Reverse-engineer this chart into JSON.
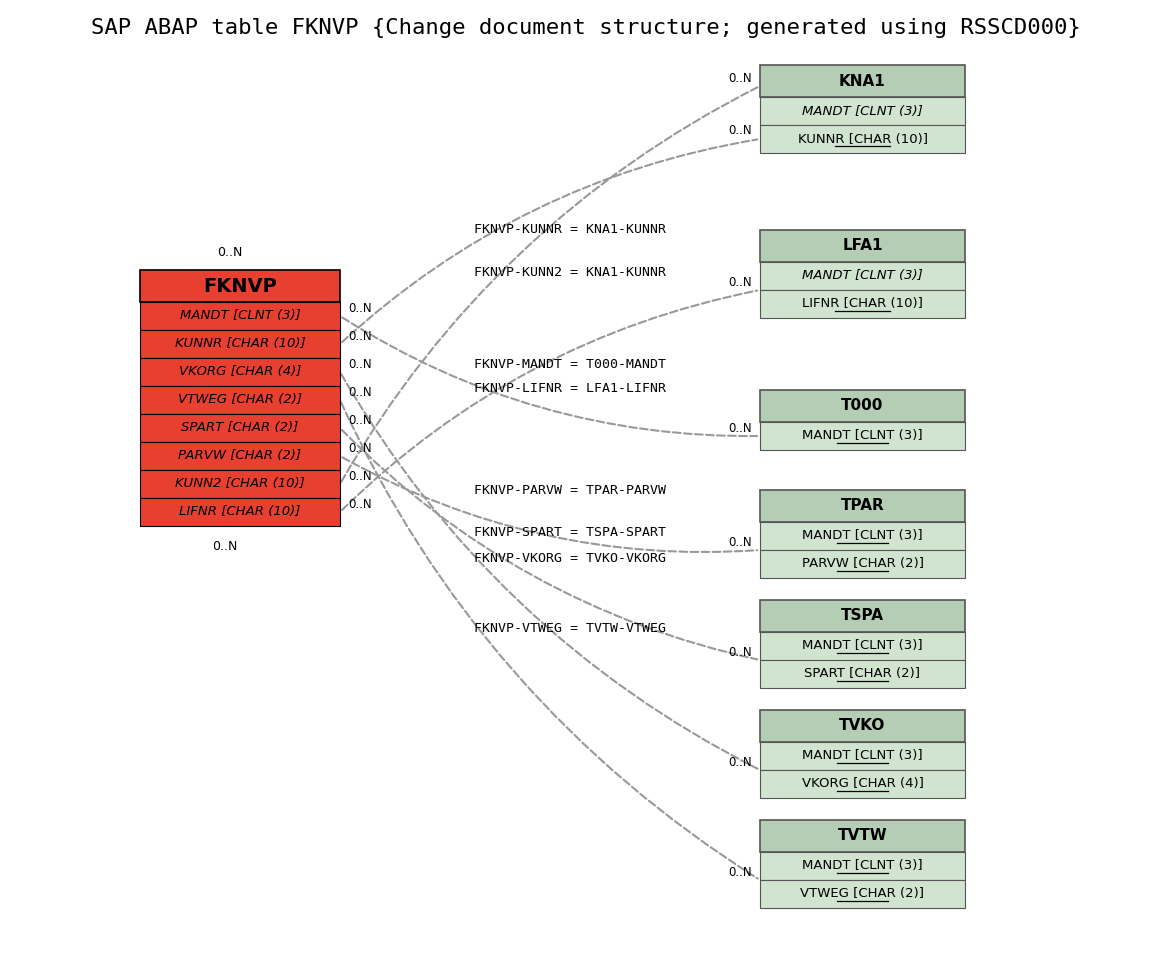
{
  "title": "SAP ABAP table FKNVP {Change document structure; generated using RSSCD000}",
  "fig_width": 11.72,
  "fig_height": 9.65,
  "background_color": "#ffffff",
  "main_table": {
    "name": "FKNVP",
    "fields": [
      "MANDT [CLNT (3)]",
      "KUNNR [CHAR (10)]",
      "VKORG [CHAR (4)]",
      "VTWEG [CHAR (2)]",
      "SPART [CHAR (2)]",
      "PARVW [CHAR (2)]",
      "KUNN2 [CHAR (10)]",
      "LIFNR [CHAR (10)]"
    ],
    "italic_fields": [
      true,
      true,
      true,
      true,
      true,
      true,
      true,
      true
    ],
    "header_bg": "#e84030",
    "field_bg": "#e84030",
    "border_color": "#000000",
    "text_color": "#000000"
  },
  "related_tables": [
    {
      "name": "KNA1",
      "fields": [
        "MANDT [CLNT (3)]",
        "KUNNR [CHAR (10)]"
      ],
      "italic_fields": [
        true,
        false
      ],
      "underline_fields": [
        false,
        true
      ],
      "from_field_idx": 6,
      "relation_label": "FKNVP-KUNN2 = KNA1-KUNNR"
    },
    {
      "name": "KNA1_2",
      "display_name": "",
      "fields": [],
      "italic_fields": [],
      "underline_fields": [],
      "from_field_idx": 1,
      "relation_label": "FKNVP-KUNNR = KNA1-KUNNR",
      "connects_to": "KNA1"
    },
    {
      "name": "LFA1",
      "fields": [
        "MANDT [CLNT (3)]",
        "LIFNR [CHAR (10)]"
      ],
      "italic_fields": [
        true,
        false
      ],
      "underline_fields": [
        false,
        true
      ],
      "from_field_idx": 7,
      "relation_label": "FKNVP-LIFNR = LFA1-LIFNR"
    },
    {
      "name": "T000",
      "fields": [
        "MANDT [CLNT (3)]"
      ],
      "italic_fields": [
        false
      ],
      "underline_fields": [
        true
      ],
      "from_field_idx": 0,
      "relation_label": "FKNVP-MANDT = T000-MANDT"
    },
    {
      "name": "TPAR",
      "fields": [
        "MANDT [CLNT (3)]",
        "PARVW [CHAR (2)]"
      ],
      "italic_fields": [
        false,
        false
      ],
      "underline_fields": [
        true,
        true
      ],
      "from_field_idx": 5,
      "relation_label": "FKNVP-PARVW = TPAR-PARVW"
    },
    {
      "name": "TSPA",
      "fields": [
        "MANDT [CLNT (3)]",
        "SPART [CHAR (2)]"
      ],
      "italic_fields": [
        false,
        false
      ],
      "underline_fields": [
        true,
        true
      ],
      "from_field_idx": 4,
      "relation_label": "FKNVP-SPART = TSPA-SPART"
    },
    {
      "name": "TVKO",
      "fields": [
        "MANDT [CLNT (3)]",
        "VKORG [CHAR (4)]"
      ],
      "italic_fields": [
        false,
        false
      ],
      "underline_fields": [
        true,
        true
      ],
      "from_field_idx": 2,
      "relation_label": "FKNVP-VKORG = TVKO-VKORG"
    },
    {
      "name": "TVTW",
      "fields": [
        "MANDT [CLNT (3)]",
        "VTWEG [CHAR (2)]"
      ],
      "italic_fields": [
        false,
        false
      ],
      "underline_fields": [
        true,
        true
      ],
      "from_field_idx": 3,
      "relation_label": "FKNVP-VTWEG = TVTW-VTWEG"
    }
  ],
  "right_header_bg": "#b5cdb5",
  "right_field_bg": "#d0e4d0",
  "right_border_color": "#555555",
  "dashed_line_color": "#999999",
  "label_fontsize": 9.5,
  "field_fontsize": 9.5,
  "header_fontsize": 11
}
